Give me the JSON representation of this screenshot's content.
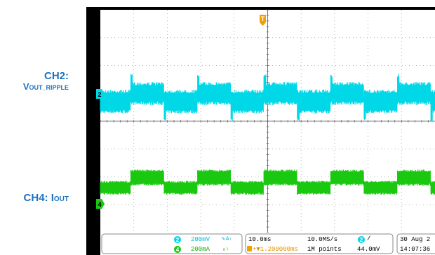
{
  "labels": {
    "ch2_title": "CH2:",
    "ch2_sub_main": "V",
    "ch2_sub_small": "OUT_RIPPLE",
    "ch4_main": "CH4: I",
    "ch4_small": "OUT"
  },
  "trigger_marker": "T",
  "channel_markers": {
    "ch2": "2",
    "ch4": "4"
  },
  "status_bar": {
    "ch2": {
      "badge": "2",
      "scale": "200mV",
      "coupling": "∿Aₗ"
    },
    "ch4": {
      "badge": "4",
      "scale": "200mA",
      "coupling": "ₐₗ"
    },
    "timebase": "10.0ms",
    "trigger_position": "+▼1.200000ms",
    "sample_rate": "10.0MS/s",
    "record_length": "1M points",
    "trigger_source_badge": "2",
    "trigger_slope": "/",
    "trigger_level": "44.0mV",
    "date": "30 Aug 2",
    "time": "14:07:36"
  },
  "colors": {
    "ch2": "#00d8e8",
    "ch4": "#19c80f",
    "trigger": "#f0a000",
    "label": "#1e73be"
  }
}
